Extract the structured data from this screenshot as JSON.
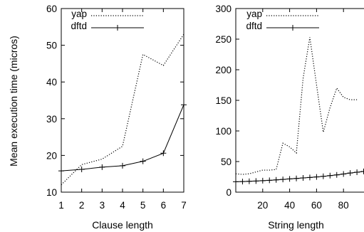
{
  "ylabel_shared": "Mean execution time (micros)",
  "chart_data": [
    {
      "type": "line",
      "xlabel": "Clause length",
      "ylabel": "Mean execution time (micros)",
      "xlim": [
        1,
        7
      ],
      "ylim": [
        10,
        60
      ],
      "xticks": [
        1,
        2,
        3,
        4,
        5,
        6,
        7
      ],
      "yticks": [
        10,
        20,
        30,
        40,
        50,
        60
      ],
      "legend": "top-left",
      "grid": false,
      "series": [
        {
          "name": "yap",
          "style": "dotted",
          "x": [
            1,
            2,
            3,
            4,
            5,
            6,
            7
          ],
          "y": [
            12,
            17.5,
            19,
            22.5,
            47.5,
            44.5,
            53
          ]
        },
        {
          "name": "dftd",
          "style": "solid-plus",
          "x": [
            1,
            2,
            3,
            4,
            5,
            6,
            7
          ],
          "y": [
            15.8,
            16.2,
            16.8,
            17.2,
            18.4,
            20.6,
            33.8
          ]
        }
      ]
    },
    {
      "type": "line",
      "xlabel": "String length",
      "ylabel": "",
      "xlim": [
        0,
        100
      ],
      "ylim": [
        0,
        300
      ],
      "xticks": [
        20,
        40,
        60,
        80
      ],
      "yticks": [
        0,
        50,
        100,
        150,
        200,
        250,
        300
      ],
      "legend": "top-left",
      "grid": false,
      "series": [
        {
          "name": "yap",
          "style": "dotted",
          "x": [
            0,
            5,
            10,
            15,
            20,
            25,
            30,
            35,
            40,
            45,
            50,
            55,
            60,
            65,
            70,
            75,
            80,
            85,
            90
          ],
          "y": [
            30,
            29,
            30,
            33,
            36,
            36,
            37,
            80,
            74,
            64,
            186,
            253,
            175,
            98,
            138,
            170,
            155,
            151,
            151
          ]
        },
        {
          "name": "dftd",
          "style": "solid-plus",
          "x": [
            0,
            5,
            10,
            15,
            20,
            25,
            30,
            35,
            40,
            45,
            50,
            55,
            60,
            65,
            70,
            75,
            80,
            85,
            90,
            95,
            100
          ],
          "y": [
            17,
            17.3,
            17.7,
            18.2,
            18.7,
            19.3,
            20,
            20.8,
            21.6,
            22.4,
            23.2,
            24,
            24.9,
            25.8,
            27,
            28.2,
            29.6,
            31.2,
            32.5,
            33.8,
            35
          ]
        }
      ]
    }
  ]
}
